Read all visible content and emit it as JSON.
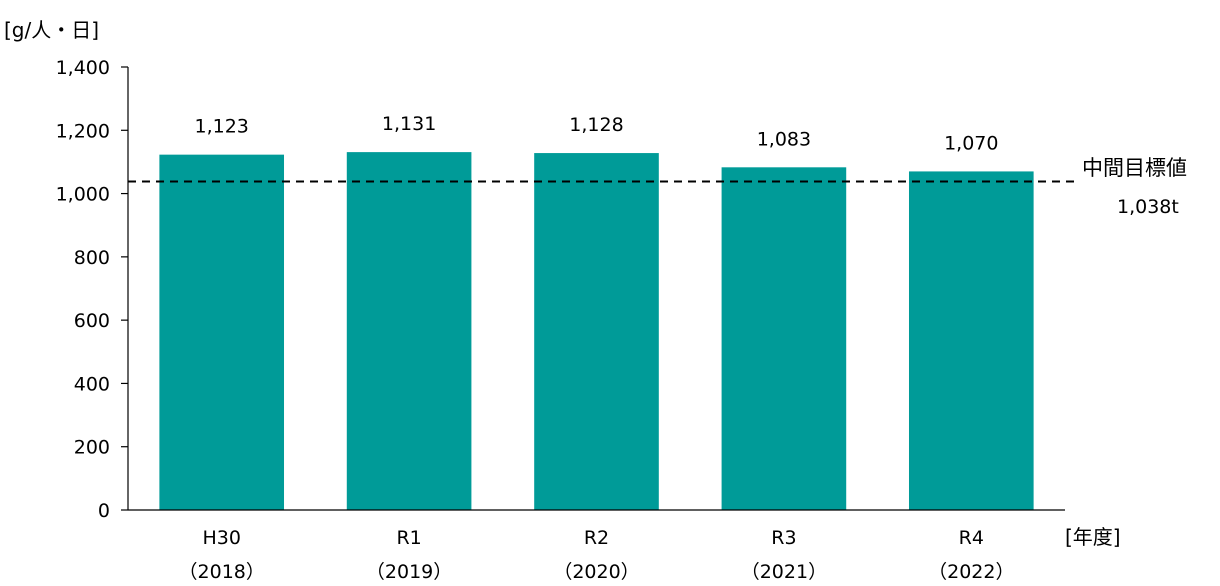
{
  "chart_data": {
    "type": "bar",
    "ylabel": "[g/人・日]",
    "xlabel": "[年度]",
    "categories": [
      "H30",
      "R1",
      "R2",
      "R3",
      "R4"
    ],
    "category_years": [
      "（2018）",
      "（2019）",
      "（2020）",
      "（2021）",
      "（2022）"
    ],
    "values": [
      1123,
      1131,
      1128,
      1083,
      1070
    ],
    "value_labels": [
      "1,123",
      "1,131",
      "1,128",
      "1,083",
      "1,070"
    ],
    "ylim": [
      0,
      1400
    ],
    "yticks": [
      0,
      200,
      400,
      600,
      800,
      1000,
      1200,
      1400
    ],
    "ytick_labels": [
      "0",
      "200",
      "400",
      "600",
      "800",
      "1,000",
      "1,200",
      "1,400"
    ],
    "bar_color": "#009B98",
    "reference_line": {
      "value": 1038,
      "label": "中間目標値",
      "value_label": "1,038t",
      "style": "dashed"
    },
    "grid": false,
    "legend": "none"
  }
}
